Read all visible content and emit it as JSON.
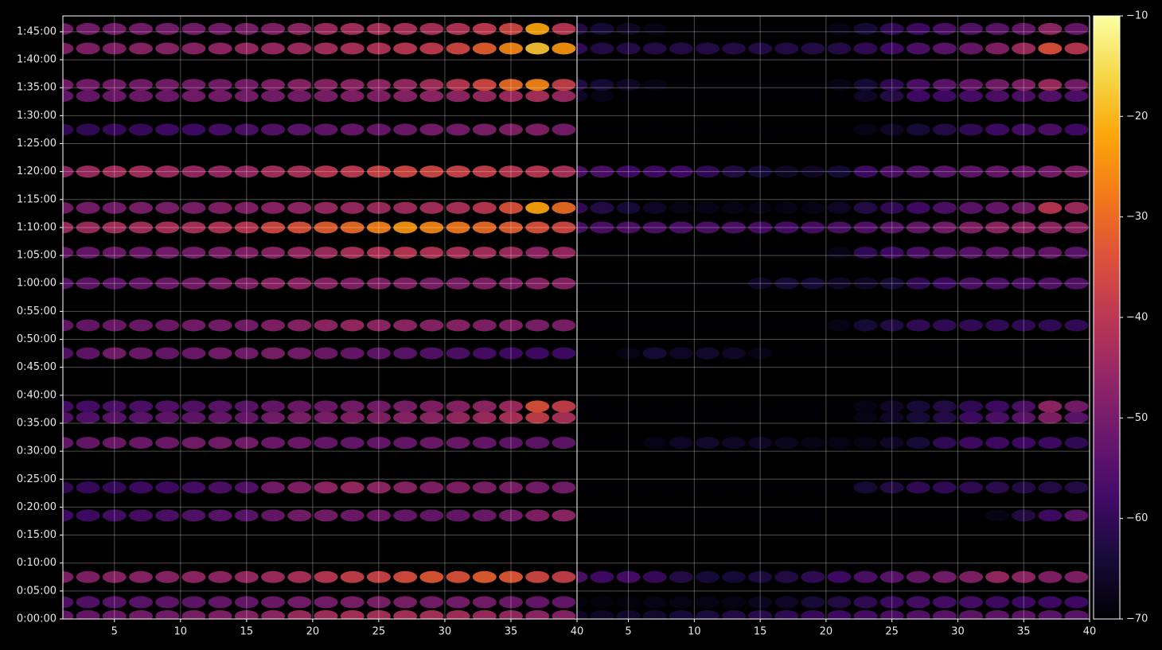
{
  "chart_data": {
    "type": "heatmap",
    "colormap": "inferno",
    "grid": true,
    "x": [
      1,
      3,
      5,
      7,
      9,
      11,
      13,
      15,
      17,
      19,
      21,
      23,
      25,
      27,
      29,
      31,
      33,
      35,
      37,
      39
    ],
    "y": [
      30,
      180,
      450,
      1110,
      1410,
      1890,
      2160,
      2280,
      2850,
      3150,
      3600,
      3930,
      4200,
      4410,
      4800,
      5250,
      5610,
      5730,
      6120,
      6330
    ],
    "panels": [
      {
        "values": [
          [
            -52,
            -52,
            -51,
            -50,
            -50,
            -49,
            -48,
            -47,
            -46,
            -44,
            -43,
            -42,
            -42,
            -42,
            -42,
            -43,
            -44,
            -45,
            -46,
            -47
          ],
          [
            -55,
            -55,
            -54,
            -54,
            -53,
            -53,
            -52,
            -52,
            -51,
            -50,
            -50,
            -49,
            -49,
            -49,
            -50,
            -50,
            -50,
            -51,
            -52,
            -52
          ],
          [
            -48,
            -48,
            -47,
            -47,
            -47,
            -46,
            -46,
            -45,
            -44,
            -42,
            -40,
            -38,
            -37,
            -35,
            -33,
            -34,
            -32,
            -33,
            -36,
            -38
          ],
          [
            -58,
            -58,
            -57,
            -57,
            -56,
            -55,
            -54,
            -54,
            -52,
            -50,
            -50,
            -51,
            -51,
            -52,
            -52,
            -52,
            -51,
            -50,
            -48,
            -46
          ],
          [
            -60,
            -59,
            -59,
            -58,
            -58,
            -57,
            -56,
            -55,
            -50,
            -48,
            -46,
            -45,
            -46,
            -47,
            -48,
            -48,
            -49,
            -49,
            -50,
            -50
          ],
          [
            -52,
            -52,
            -51,
            -51,
            -51,
            -50,
            -50,
            -50,
            -51,
            -51,
            -52,
            -52,
            -52,
            -52,
            -51,
            -51,
            -52,
            -53,
            -53,
            -53
          ],
          [
            -55,
            -55,
            -54,
            -54,
            -53,
            -53,
            -52,
            -52,
            -50,
            -49,
            -49,
            -48,
            -48,
            -47,
            -46,
            -45,
            -44,
            -42,
            -38,
            -42
          ],
          [
            -57,
            -57,
            -56,
            -56,
            -55,
            -55,
            -54,
            -54,
            -52,
            -51,
            -51,
            -50,
            -50,
            -49,
            -48,
            -47,
            -46,
            -44,
            -34,
            -38
          ],
          [
            -55,
            -53,
            -50,
            -51,
            -52,
            -51,
            -50,
            -50,
            -49,
            -50,
            -51,
            -52,
            -53,
            -54,
            -55,
            -56,
            -57,
            -58,
            -58,
            -58
          ],
          [
            -52,
            -52,
            -51,
            -51,
            -51,
            -50,
            -50,
            -50,
            -48,
            -47,
            -46,
            -45,
            -46,
            -46,
            -47,
            -47,
            -48,
            -48,
            -49,
            -49
          ],
          [
            -54,
            -53,
            -53,
            -52,
            -51,
            -50,
            -49,
            -48,
            -46,
            -46,
            -47,
            -48,
            -48,
            -48,
            -49,
            -49,
            -48,
            -48,
            -47,
            -47
          ],
          [
            -52,
            -52,
            -51,
            -51,
            -50,
            -50,
            -49,
            -48,
            -47,
            -45,
            -44,
            -42,
            -41,
            -40,
            -41,
            -42,
            -43,
            -44,
            -46,
            -45
          ],
          [
            -44,
            -44,
            -43,
            -43,
            -42,
            -42,
            -41,
            -40,
            -36,
            -34,
            -32,
            -30,
            -27,
            -24,
            -26,
            -28,
            -30,
            -32,
            -34,
            -36
          ],
          [
            -50,
            -50,
            -50,
            -49,
            -49,
            -49,
            -48,
            -48,
            -47,
            -46,
            -45,
            -45,
            -44,
            -44,
            -43,
            -42,
            -40,
            -34,
            -22,
            -30
          ],
          [
            -46,
            -44,
            -43,
            -43,
            -44,
            -45,
            -45,
            -45,
            -43,
            -42,
            -40,
            -39,
            -37,
            -36,
            -36,
            -37,
            -38,
            -40,
            -40,
            -42
          ],
          [
            -60,
            -60,
            -59,
            -59,
            -58,
            -58,
            -57,
            -56,
            -55,
            -54,
            -53,
            -52,
            -52,
            -51,
            -50,
            -50,
            -49,
            -48,
            -48,
            -50
          ],
          [
            -52,
            -52,
            -51,
            -51,
            -51,
            -50,
            -50,
            -50,
            -50,
            -50,
            -49,
            -48,
            -48,
            -47,
            -46,
            -46,
            -45,
            -44,
            -42,
            -45
          ],
          [
            -50,
            -50,
            -50,
            -50,
            -50,
            -50,
            -50,
            -50,
            -48,
            -47,
            -47,
            -46,
            -46,
            -45,
            -43,
            -40,
            -36,
            -30,
            -26,
            -38
          ],
          [
            -48,
            -48,
            -48,
            -47,
            -47,
            -47,
            -46,
            -45,
            -45,
            -44,
            -43,
            -42,
            -41,
            -40,
            -39,
            -36,
            -32,
            -26,
            -18,
            -24
          ],
          [
            -50,
            -50,
            -50,
            -50,
            -50,
            -50,
            -50,
            -49,
            -48,
            -46,
            -44,
            -43,
            -42,
            -42,
            -42,
            -41,
            -39,
            -36,
            -22,
            -40
          ]
        ]
      },
      {
        "values": [
          [
            -66,
            -66,
            -65,
            -65,
            -64,
            -63,
            -62,
            -61,
            -60,
            -59,
            -58,
            -57,
            -56,
            -55,
            -54,
            -53,
            -53,
            -53,
            -54,
            -54
          ],
          [
            -69,
            -69,
            -69,
            -68,
            -68,
            -68,
            -68,
            -67,
            -66,
            -64,
            -62,
            -60,
            -58,
            -57,
            -57,
            -57,
            -58,
            -58,
            -58,
            -58
          ],
          [
            -56,
            -58,
            -57,
            -59,
            -62,
            -64,
            -64,
            -63,
            -62,
            -60,
            -58,
            -56,
            -54,
            -52,
            -50,
            -48,
            -45,
            -46,
            -48,
            -48
          ],
          [
            -70,
            -70,
            -70,
            -70,
            -70,
            -70,
            -70,
            -70,
            -70,
            -70,
            -70,
            -70,
            -70,
            -70,
            -70,
            -70,
            -68,
            -62,
            -58,
            -54
          ],
          [
            -70,
            -70,
            -70,
            -70,
            -70,
            -70,
            -70,
            -70,
            -70,
            -70,
            -70,
            -64,
            -62,
            -60,
            -60,
            -60,
            -61,
            -62,
            -62,
            -62
          ],
          [
            -70,
            -70,
            -70,
            -68,
            -66,
            -65,
            -66,
            -66,
            -67,
            -68,
            -68,
            -68,
            -66,
            -64,
            -60,
            -58,
            -58,
            -58,
            -58,
            -60
          ],
          [
            -70,
            -70,
            -70,
            -70,
            -70,
            -70,
            -70,
            -70,
            -70,
            -70,
            -70,
            -68,
            -66,
            -64,
            -62,
            -58,
            -56,
            -54,
            -48,
            -54
          ],
          [
            -70,
            -70,
            -70,
            -70,
            -70,
            -70,
            -70,
            -70,
            -70,
            -70,
            -70,
            -68,
            -66,
            -64,
            -62,
            -60,
            -58,
            -56,
            -46,
            -50
          ],
          [
            -70,
            -70,
            -68,
            -64,
            -66,
            -65,
            -66,
            -68,
            -70,
            -70,
            -70,
            -70,
            -70,
            -70,
            -70,
            -70,
            -70,
            -70,
            -70,
            -70
          ],
          [
            -70,
            -70,
            -70,
            -70,
            -70,
            -70,
            -70,
            -70,
            -70,
            -70,
            -68,
            -64,
            -62,
            -60,
            -60,
            -60,
            -60,
            -60,
            -60,
            -60
          ],
          [
            -70,
            -70,
            -70,
            -70,
            -70,
            -70,
            -70,
            -66,
            -64,
            -64,
            -66,
            -66,
            -64,
            -60,
            -58,
            -56,
            -56,
            -56,
            -55,
            -55
          ],
          [
            -70,
            -70,
            -70,
            -70,
            -70,
            -70,
            -70,
            -70,
            -70,
            -70,
            -68,
            -60,
            -58,
            -56,
            -55,
            -54,
            -53,
            -53,
            -52,
            -54
          ],
          [
            -56,
            -56,
            -56,
            -56,
            -56,
            -56,
            -56,
            -57,
            -57,
            -57,
            -56,
            -55,
            -54,
            -52,
            -50,
            -48,
            -46,
            -46,
            -46,
            -46
          ],
          [
            -60,
            -62,
            -64,
            -66,
            -68,
            -68,
            -68,
            -68,
            -68,
            -68,
            -66,
            -62,
            -60,
            -58,
            -56,
            -54,
            -52,
            -50,
            -40,
            -44
          ],
          [
            -56,
            -56,
            -58,
            -58,
            -58,
            -60,
            -62,
            -64,
            -66,
            -66,
            -64,
            -58,
            -56,
            -55,
            -54,
            -53,
            -52,
            -51,
            -50,
            -48
          ],
          [
            -70,
            -70,
            -70,
            -70,
            -70,
            -70,
            -70,
            -70,
            -70,
            -70,
            -70,
            -68,
            -66,
            -64,
            -62,
            -60,
            -58,
            -57,
            -56,
            -58
          ],
          [
            -66,
            -68,
            -70,
            -70,
            -70,
            -70,
            -70,
            -70,
            -70,
            -70,
            -70,
            -66,
            -62,
            -58,
            -58,
            -57,
            -56,
            -56,
            -55,
            -56
          ],
          [
            -62,
            -64,
            -66,
            -68,
            -70,
            -70,
            -70,
            -70,
            -70,
            -70,
            -68,
            -64,
            -60,
            -56,
            -54,
            -52,
            -50,
            -48,
            -44,
            -50
          ],
          [
            -60,
            -62,
            -62,
            -62,
            -62,
            -62,
            -62,
            -62,
            -62,
            -62,
            -62,
            -60,
            -58,
            -56,
            -54,
            -52,
            -48,
            -44,
            -34,
            -40
          ],
          [
            -62,
            -64,
            -66,
            -68,
            -70,
            -70,
            -70,
            -70,
            -70,
            -70,
            -68,
            -64,
            -60,
            -58,
            -56,
            -55,
            -54,
            -52,
            -46,
            -52
          ]
        ]
      }
    ],
    "xlim": [
      1.1,
      40
    ],
    "xticks": [
      5,
      10,
      15,
      20,
      25,
      30,
      35,
      40
    ],
    "ylim": [
      0,
      6470
    ],
    "yticks": [
      {
        "value": 0,
        "label": "0:00:00"
      },
      {
        "value": 300,
        "label": "0:05:00"
      },
      {
        "value": 600,
        "label": "0:10:00"
      },
      {
        "value": 900,
        "label": "0:15:00"
      },
      {
        "value": 1200,
        "label": "0:20:00"
      },
      {
        "value": 1500,
        "label": "0:25:00"
      },
      {
        "value": 1800,
        "label": "0:30:00"
      },
      {
        "value": 2100,
        "label": "0:35:00"
      },
      {
        "value": 2400,
        "label": "0:40:00"
      },
      {
        "value": 2700,
        "label": "0:45:00"
      },
      {
        "value": 3000,
        "label": "0:50:00"
      },
      {
        "value": 3300,
        "label": "0:55:00"
      },
      {
        "value": 3600,
        "label": "1:00:00"
      },
      {
        "value": 3900,
        "label": "1:05:00"
      },
      {
        "value": 4200,
        "label": "1:10:00"
      },
      {
        "value": 4500,
        "label": "1:15:00"
      },
      {
        "value": 4800,
        "label": "1:20:00"
      },
      {
        "value": 5100,
        "label": "1:25:00"
      },
      {
        "value": 5400,
        "label": "1:30:00"
      },
      {
        "value": 5700,
        "label": "1:35:00"
      },
      {
        "value": 6000,
        "label": "1:40:00"
      },
      {
        "value": 6300,
        "label": "1:45:00"
      }
    ],
    "zlim": [
      -70,
      -10
    ],
    "zticks": [
      {
        "value": -70,
        "label": "−70"
      },
      {
        "value": -60,
        "label": "−60"
      },
      {
        "value": -50,
        "label": "−50"
      },
      {
        "value": -40,
        "label": "−40"
      },
      {
        "value": -30,
        "label": "−30"
      },
      {
        "value": -20,
        "label": "−20"
      },
      {
        "value": -10,
        "label": "−10"
      }
    ]
  }
}
